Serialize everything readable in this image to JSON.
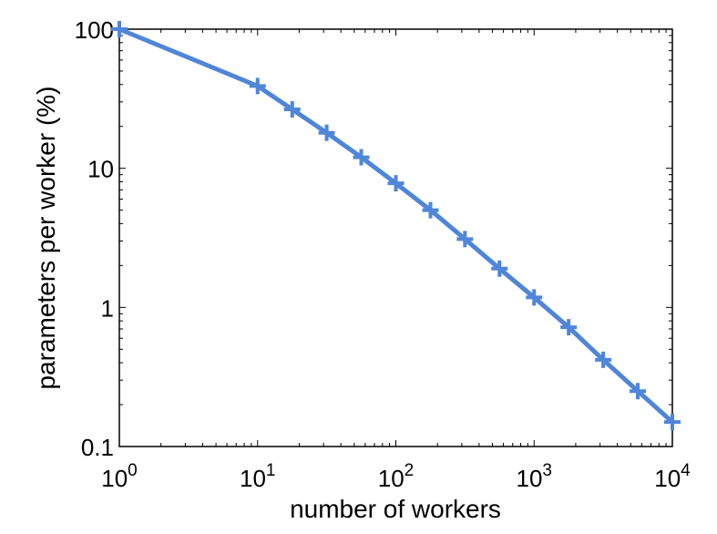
{
  "chart_data": {
    "type": "line",
    "title": "",
    "xlabel": "number of workers",
    "ylabel": "parameters per worker (%)",
    "xscale": "log",
    "yscale": "log",
    "xlim": [
      1,
      10000
    ],
    "ylim": [
      0.1,
      100
    ],
    "grid": false,
    "legend": "none",
    "x_ticks": [
      {
        "value": 1,
        "base": "10",
        "exp": "0"
      },
      {
        "value": 10,
        "base": "10",
        "exp": "1"
      },
      {
        "value": 100,
        "base": "10",
        "exp": "2"
      },
      {
        "value": 1000,
        "base": "10",
        "exp": "3"
      },
      {
        "value": 10000,
        "base": "10",
        "exp": "4"
      }
    ],
    "y_ticks": [
      {
        "value": 0.1,
        "label": "0.1"
      },
      {
        "value": 1,
        "label": "1"
      },
      {
        "value": 10,
        "label": "10"
      },
      {
        "value": 100,
        "label": "100"
      }
    ],
    "series": [
      {
        "color": "#4f86d9",
        "marker": "plus",
        "x": [
          1,
          10,
          17.8,
          31.6,
          56.2,
          100,
          178,
          316,
          562,
          1000,
          1778,
          3162,
          5623,
          10000
        ],
        "y": [
          100,
          39,
          26.5,
          18,
          12,
          7.8,
          5.0,
          3.1,
          1.9,
          1.18,
          0.72,
          0.42,
          0.25,
          0.15
        ]
      }
    ]
  }
}
